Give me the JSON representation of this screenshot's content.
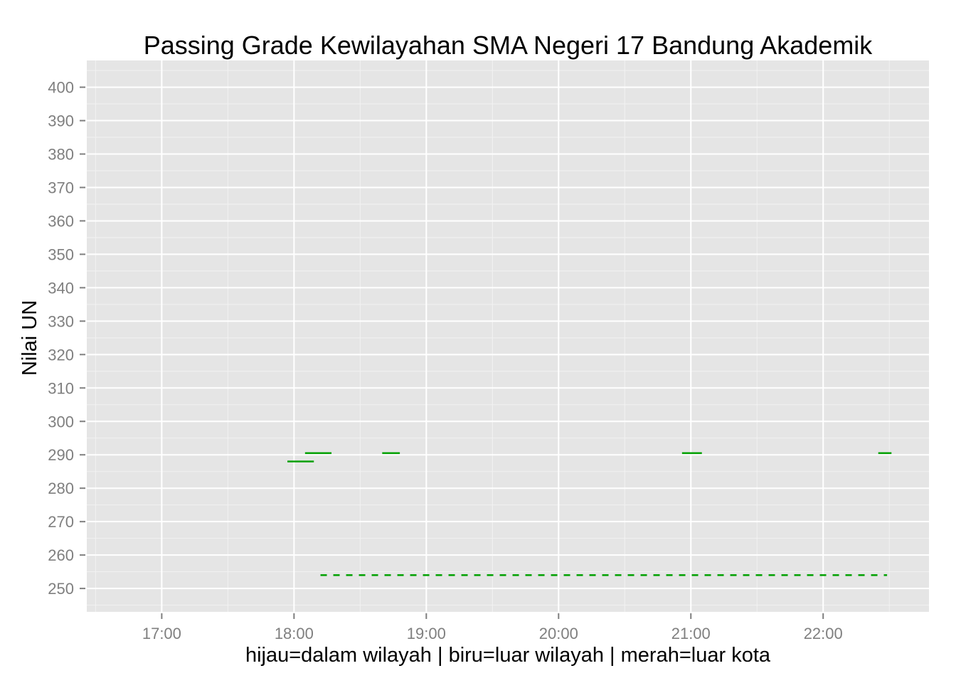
{
  "chart_data": {
    "type": "line",
    "title": "Passing Grade Kewilayahan SMA Negeri 17 Bandung Akademik",
    "xlabel": "hijau=dalam wilayah | biru=luar wilayah | merah=luar kota",
    "ylabel": "Nilai UN",
    "x_ticks": [
      "17:00",
      "18:00",
      "19:00",
      "20:00",
      "21:00",
      "22:00"
    ],
    "y_ticks": [
      250,
      260,
      270,
      280,
      290,
      300,
      310,
      320,
      330,
      340,
      350,
      360,
      370,
      380,
      390,
      400
    ],
    "xlim": [
      "16:26",
      "22:48"
    ],
    "ylim": [
      243,
      408
    ],
    "grid": true,
    "background": "#e5e5e5",
    "series": [
      {
        "color": "#00a000",
        "style": "solid",
        "segments": [
          {
            "x": [
              "17:57",
              "18:09"
            ],
            "y": 288.0
          },
          {
            "x": [
              "18:05",
              "18:17"
            ],
            "y": 290.5
          },
          {
            "x": [
              "18:40",
              "18:48"
            ],
            "y": 290.5
          },
          {
            "x": [
              "20:56",
              "21:05"
            ],
            "y": 290.5
          },
          {
            "x": [
              "22:25",
              "22:31"
            ],
            "y": 290.5
          }
        ]
      },
      {
        "color": "#00a000",
        "style": "dashed",
        "segments": [
          {
            "x": [
              "18:12",
              "22:29"
            ],
            "y": 254.0
          }
        ]
      }
    ]
  }
}
